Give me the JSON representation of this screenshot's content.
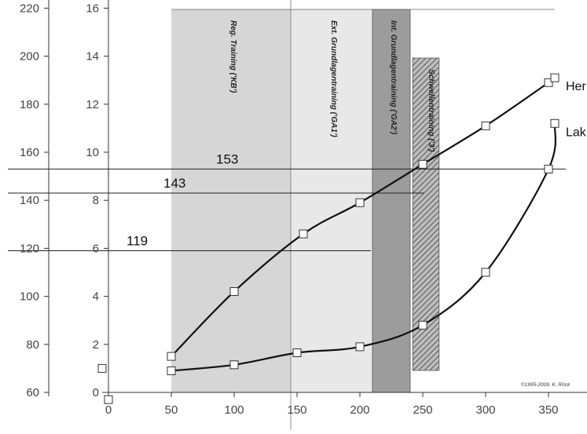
{
  "chart_data": {
    "type": "line",
    "x_ticks": [
      0,
      50,
      100,
      150,
      200,
      250,
      300,
      350
    ],
    "y_left_ticks": [
      60,
      80,
      100,
      120,
      140,
      160,
      180,
      200,
      220
    ],
    "y_right_ticks": [
      0,
      2,
      4,
      6,
      8,
      10,
      12,
      14,
      16
    ],
    "xlim": [
      -5,
      375
    ],
    "ylim": [
      58,
      225
    ],
    "ylim_right": [
      0,
      16
    ],
    "zones": [
      {
        "label": "Reg. Training ('KB')",
        "x_start": 50,
        "x_end": 145,
        "color": "#d6d6d6"
      },
      {
        "label": "Ext. Grundlagentraining ('GA1')",
        "x_start": 145,
        "x_end": 210,
        "color": "#e8e8e8"
      },
      {
        "label": "Int. Grundlagentraining ('GA2')",
        "x_start": 210,
        "x_end": 240,
        "color": "#9c9c9c"
      },
      {
        "label": "Schwellentraining ('3')",
        "x_start": 242,
        "x_end": 263,
        "color": "#8a8a8a"
      }
    ],
    "series": [
      {
        "name": "Her",
        "points": [
          [
            50,
            75
          ],
          [
            100,
            102
          ],
          [
            155,
            126
          ],
          [
            200,
            139
          ],
          [
            250,
            155
          ],
          [
            300,
            171
          ],
          [
            350,
            189
          ],
          [
            355,
            191
          ]
        ]
      },
      {
        "name": "Lak",
        "points": [
          [
            -5,
            70
          ],
          [
            50,
            69
          ],
          [
            100,
            71.5
          ],
          [
            150,
            76.5
          ],
          [
            200,
            79
          ],
          [
            250,
            88
          ],
          [
            300,
            110
          ],
          [
            350,
            153
          ],
          [
            355,
            172
          ]
        ]
      }
    ],
    "extra_markers": [
      [
        0,
        57
      ]
    ],
    "threshold_lines": [
      {
        "label": "153",
        "y": 153
      },
      {
        "label": "143",
        "y": 143
      },
      {
        "label": "119",
        "y": 119
      }
    ],
    "credit": "©1995-2009, K. Röck"
  }
}
